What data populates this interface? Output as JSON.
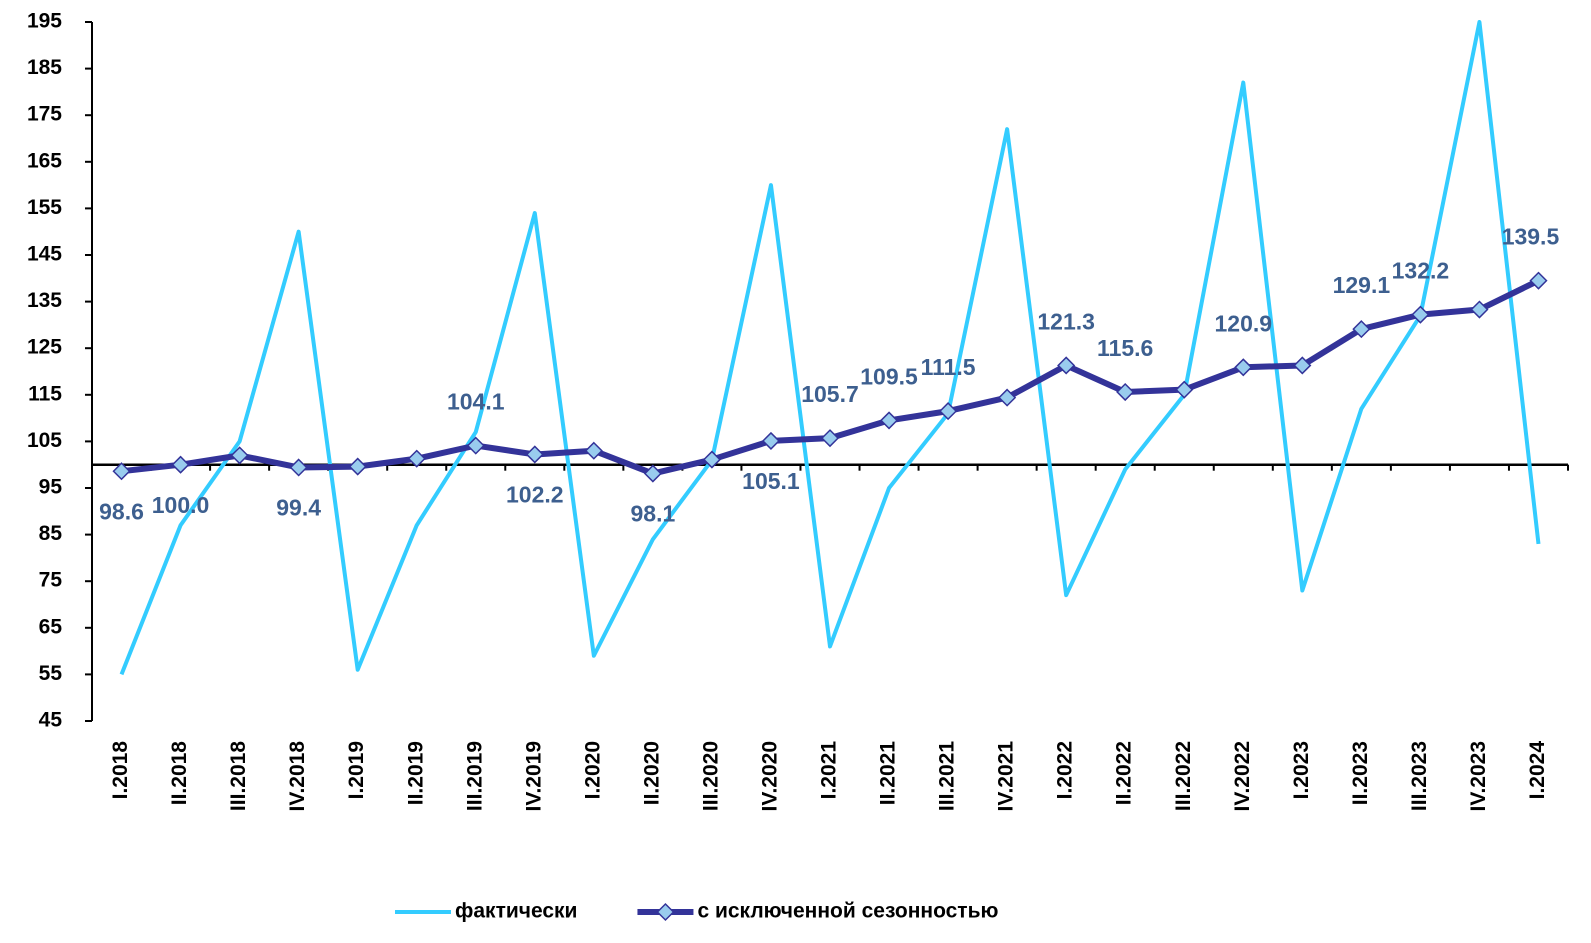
{
  "chart_data": {
    "type": "line",
    "categories": [
      "I.2018",
      "II.2018",
      "III.2018",
      "IV.2018",
      "I.2019",
      "II.2019",
      "III.2019",
      "IV.2019",
      "I.2020",
      "II.2020",
      "III.2020",
      "IV.2020",
      "I.2021",
      "II.2021",
      "III.2021",
      "IV.2021",
      "I.2022",
      "II.2022",
      "III.2022",
      "IV.2022",
      "I.2023",
      "II.2023",
      "III.2023",
      "IV.2023",
      "I.2024"
    ],
    "series": [
      {
        "name": "фактически",
        "color": "#33ccff",
        "values": [
          55,
          87,
          105,
          150,
          56,
          87,
          107,
          154,
          59,
          84,
          101,
          160,
          61,
          95,
          111,
          172,
          72,
          99,
          115,
          182,
          73,
          112,
          132,
          195,
          83
        ]
      },
      {
        "name": "с исключенной сезонностью",
        "color": "#333399",
        "marker": "diamond",
        "marker_color": "#99ccee",
        "values": [
          98.6,
          100.0,
          102.0,
          99.4,
          99.6,
          101.3,
          104.1,
          102.2,
          103.0,
          98.1,
          101.1,
          105.1,
          105.7,
          109.5,
          111.5,
          114.4,
          121.3,
          115.6,
          116.1,
          120.9,
          121.3,
          129.1,
          132.2,
          133.3,
          139.5
        ],
        "value_labels": [
          "98.6",
          "100.0",
          null,
          "99.4",
          null,
          null,
          "104.1",
          "102.2",
          null,
          "98.1",
          null,
          "105.1",
          "105.7",
          "109.5",
          "111.5",
          null,
          "121.3",
          "115.6",
          null,
          "120.9",
          null,
          "129.1",
          "132.2",
          null,
          "139.5"
        ]
      }
    ],
    "ylim": [
      45,
      195
    ],
    "yticks": [
      45,
      55,
      65,
      75,
      85,
      95,
      105,
      115,
      125,
      135,
      145,
      155,
      165,
      175,
      185,
      195
    ],
    "x_axis_at": 100,
    "grid": false,
    "legend": "bottom"
  }
}
